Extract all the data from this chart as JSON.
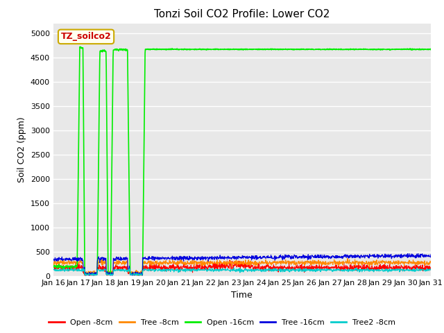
{
  "title": "Tonzi Soil CO2 Profile: Lower CO2",
  "xlabel": "Time",
  "ylabel": "Soil CO2 (ppm)",
  "ylim": [
    0,
    5200
  ],
  "yticks": [
    0,
    500,
    1000,
    1500,
    2000,
    2500,
    3000,
    3500,
    4000,
    4500,
    5000
  ],
  "fig_bg_color": "#ffffff",
  "plot_bg_color": "#e8e8e8",
  "grid_color": "#ffffff",
  "legend_label": "TZ_soilco2",
  "legend_box_facecolor": "#fffff0",
  "legend_box_edgecolor": "#ccaa00",
  "series": [
    {
      "label": "Open -8cm",
      "color": "#ff0000"
    },
    {
      "label": "Tree -8cm",
      "color": "#ff8800"
    },
    {
      "label": "Open -16cm",
      "color": "#00ee00"
    },
    {
      "label": "Tree -16cm",
      "color": "#0000dd"
    },
    {
      "label": "Tree2 -8cm",
      "color": "#00cccc"
    }
  ],
  "x_tick_labels": [
    "Jan 16",
    "Jan 17",
    "Jan 18",
    "Jan 19",
    "Jan 20",
    "Jan 21",
    "Jan 22",
    "Jan 23",
    "Jan 24",
    "Jan 25",
    "Jan 26",
    "Jan 27",
    "Jan 28",
    "Jan 29",
    "Jan 30",
    "Jan 31"
  ],
  "n_points": 1440
}
